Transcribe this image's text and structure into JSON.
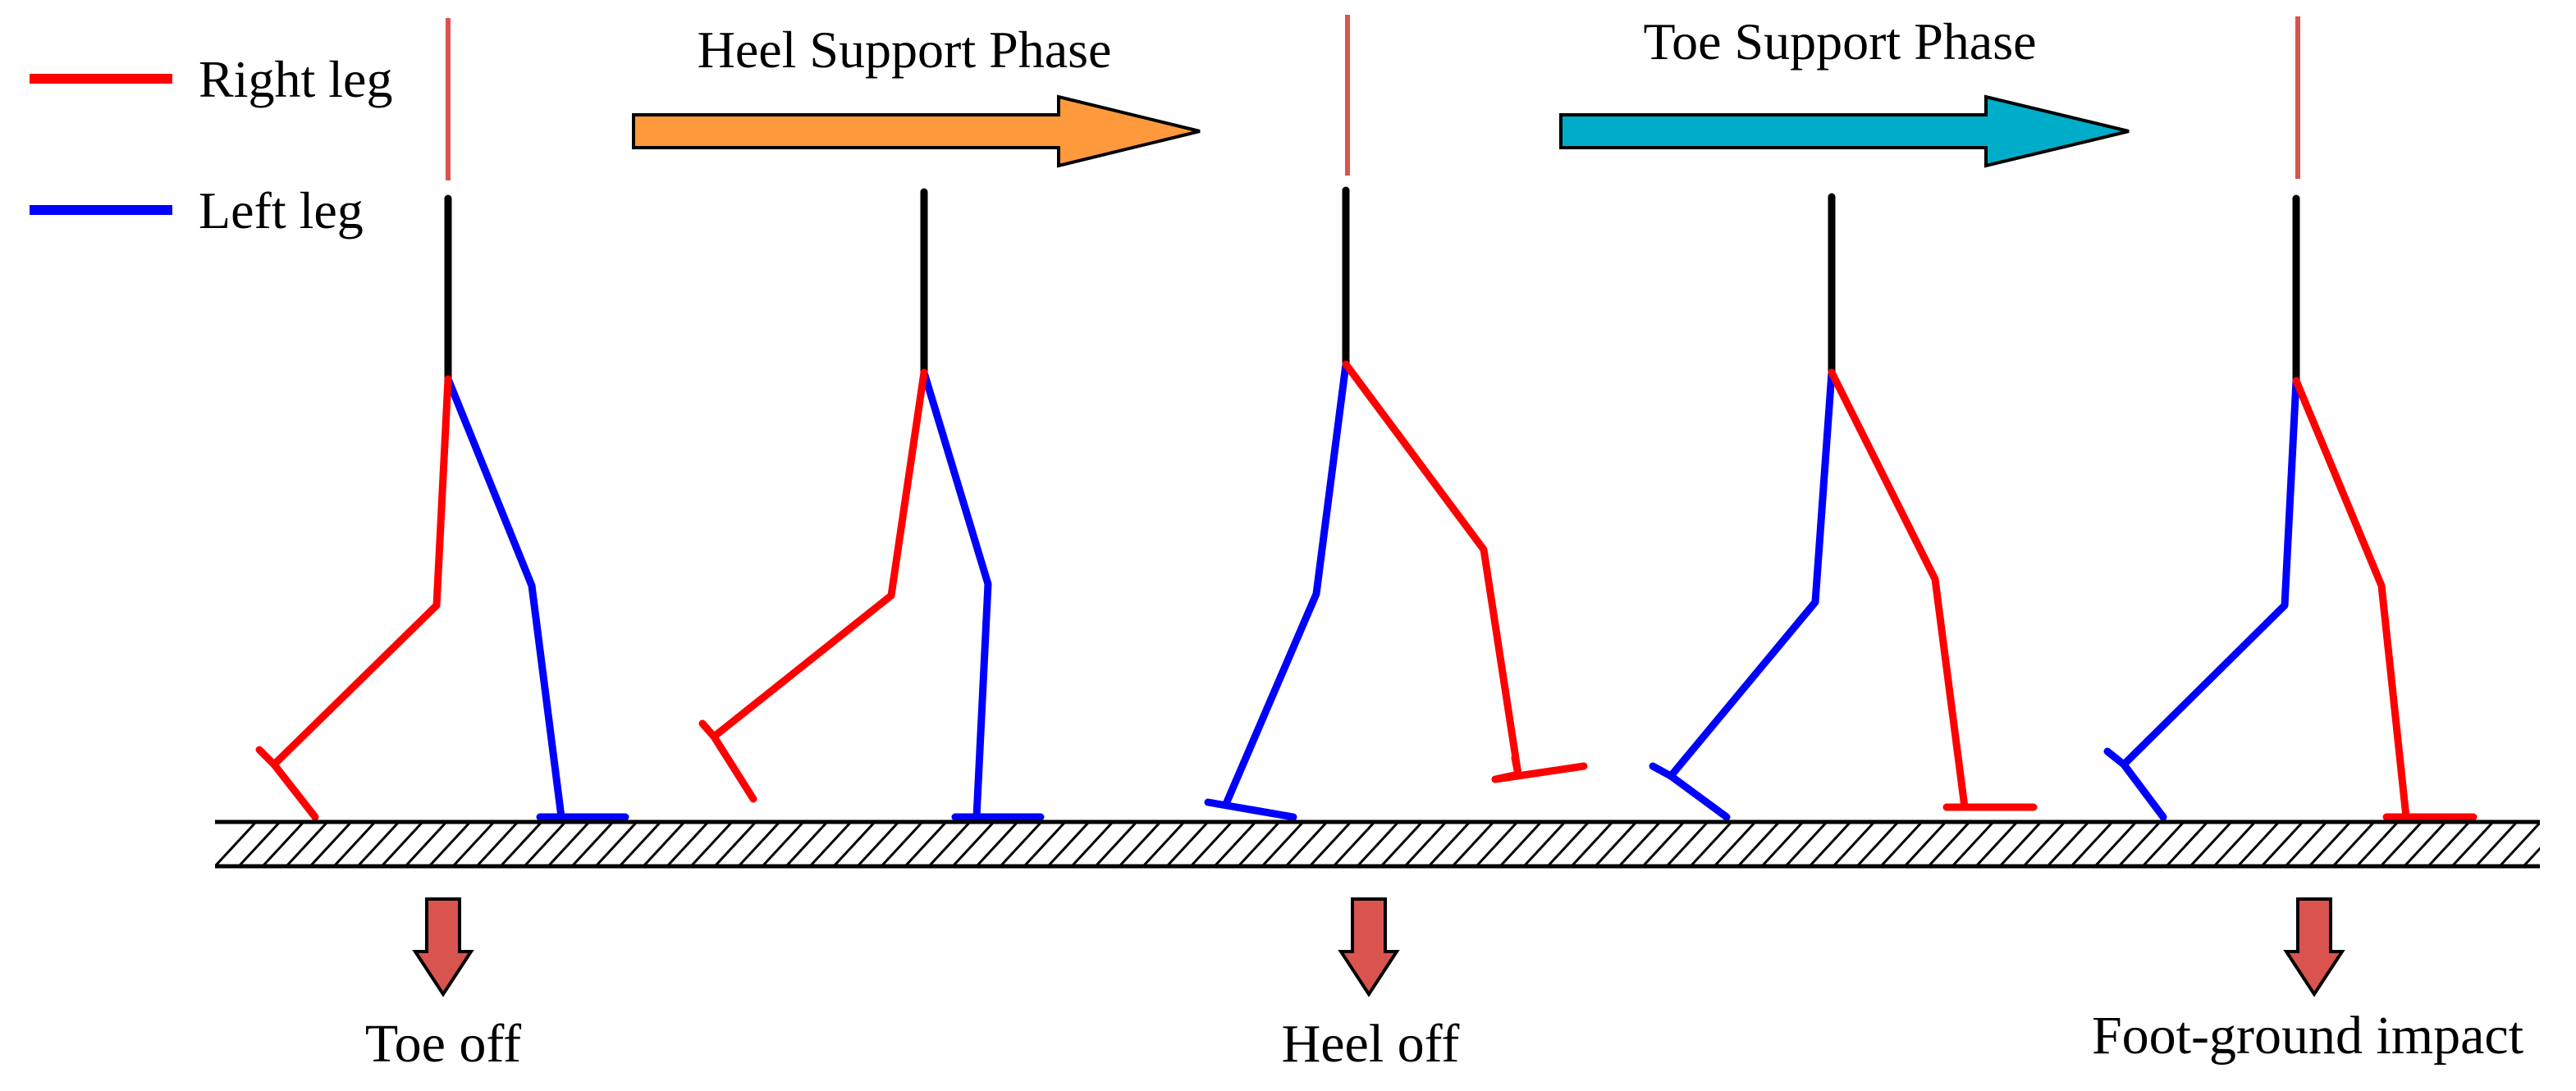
{
  "legend": [
    {
      "label": "Right leg",
      "color": "#ff0000"
    },
    {
      "label": "Left leg",
      "color": "#0000ff"
    }
  ],
  "phases": [
    {
      "label": "Heel Support Phase",
      "color": "#ff9a3c"
    },
    {
      "label": "Toe Support Phase",
      "color": "#00adc8"
    }
  ],
  "events": [
    {
      "label": "Toe off"
    },
    {
      "label": "Heel off"
    },
    {
      "label": "Foot-ground impact"
    }
  ],
  "colors": {
    "trunk": "#000000",
    "marker": "#d9534f",
    "event_arrow": "#d9534f",
    "ground": "#000000"
  }
}
